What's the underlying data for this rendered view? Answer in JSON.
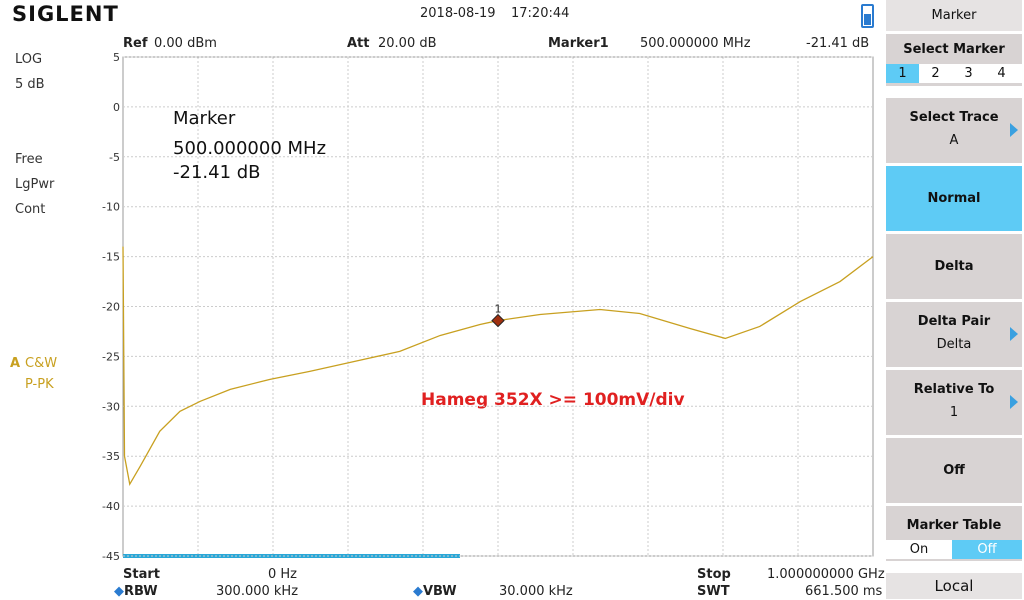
{
  "header": {
    "brand": "SIGLENT",
    "date": "2018-08-19",
    "time": "17:20:44"
  },
  "left_panel": {
    "scale_type": "LOG",
    "scale": "5 dB",
    "trigger": "Free",
    "detector": "LgPwr",
    "sweep": "Cont",
    "trace_label": "A",
    "trace_mode": "C&W",
    "trace_detector": "P-PK"
  },
  "info_top": {
    "ref_label": "Ref",
    "ref_value": "0.00 dBm",
    "att_label": "Att",
    "att_value": "20.00 dB",
    "marker_label": "Marker1",
    "marker_freq": "500.000000 MHz",
    "marker_level": "-21.41 dB"
  },
  "chart_data": {
    "type": "line",
    "x": [
      0,
      2,
      9,
      23,
      49,
      76,
      103,
      143,
      196,
      249,
      303,
      369,
      423,
      476,
      500,
      556,
      636,
      689,
      756,
      803,
      849,
      903,
      956,
      1000
    ],
    "series": [
      {
        "color": "#c8a020",
        "values": [
          -14,
          -35,
          -37.8,
          -36,
          -32.5,
          -30.5,
          -29.5,
          -28.3,
          -27.3,
          -26.5,
          -25.6,
          -24.5,
          -22.9,
          -21.8,
          -21.41,
          -20.8,
          -20.3,
          -20.7,
          -22.2,
          -23.2,
          -22,
          -19.5,
          -17.5,
          -15
        ]
      }
    ],
    "xlim": [
      0,
      1000
    ],
    "ylim": [
      -45,
      5
    ],
    "yticks": [
      5,
      0,
      -5,
      -10,
      -15,
      -20,
      -25,
      -30,
      -35,
      -40,
      -45
    ],
    "marker": {
      "label": "1",
      "x": 500,
      "y": -21.41,
      "color": "#a03010"
    },
    "marker_readout": [
      "Marker",
      "500.000000 MHz",
      "-21.41 dB"
    ],
    "annotation": "Hameg 352X >= 100mV/div"
  },
  "bottom": {
    "start_label": "Start",
    "start_value": "0 Hz",
    "stop_label": "Stop",
    "stop_value": "1.000000000 GHz",
    "rbw_label": "RBW",
    "rbw_value": "300.000 kHz",
    "vbw_label": "VBW",
    "vbw_value": "30.000 kHz",
    "swt_label": "SWT",
    "swt_value": "661.500 ms"
  },
  "menu": {
    "title": "Marker",
    "select_marker": "Select Marker",
    "marker_options": [
      "1",
      "2",
      "3",
      "4"
    ],
    "select_trace": "Select Trace",
    "select_trace_value": "A",
    "normal": "Normal",
    "delta": "Delta",
    "delta_pair": "Delta Pair",
    "delta_pair_value": "Delta",
    "relative_to": "Relative To",
    "relative_to_value": "1",
    "off": "Off",
    "marker_table": "Marker Table",
    "table_options": [
      "On",
      "Off"
    ],
    "local": "Local"
  }
}
